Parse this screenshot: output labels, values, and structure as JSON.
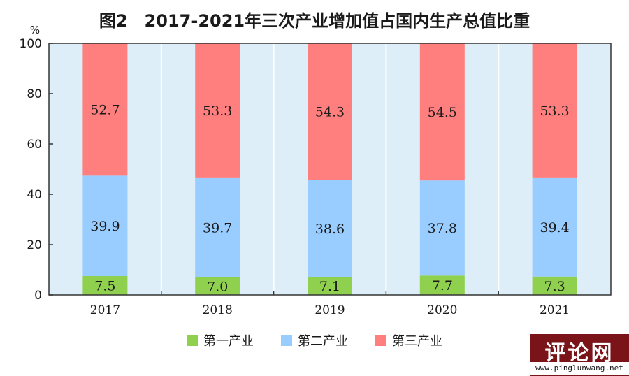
{
  "chart_data": {
    "type": "bar",
    "stacked": true,
    "title": "图2　2017-2021年三次产业增加值占国内生产总值比重",
    "ylabel": "%",
    "xlabel": "",
    "ylim": [
      0,
      100
    ],
    "yticks": [
      0,
      20,
      40,
      60,
      80,
      100
    ],
    "grid": true,
    "legend_position": "bottom",
    "categories": [
      "2017",
      "2018",
      "2019",
      "2020",
      "2021"
    ],
    "series": [
      {
        "name": "第一产业",
        "color": "#8fd14f",
        "values": [
          7.5,
          7.0,
          7.1,
          7.7,
          7.3
        ]
      },
      {
        "name": "第二产业",
        "color": "#99ccff",
        "values": [
          39.9,
          39.7,
          38.6,
          37.8,
          39.4
        ]
      },
      {
        "name": "第三产业",
        "color": "#ff7f7f",
        "values": [
          52.7,
          53.3,
          54.3,
          54.5,
          53.3
        ]
      }
    ],
    "value_labels": [
      [
        "7.5",
        "7.0",
        "7.1",
        "7.7",
        "7.3"
      ],
      [
        "39.9",
        "39.7",
        "38.6",
        "37.8",
        "39.4"
      ],
      [
        "52.7",
        "53.3",
        "54.3",
        "54.5",
        "53.3"
      ]
    ],
    "plot_background": "#ddeef8"
  },
  "watermark": {
    "logo_text": "评论网",
    "url_text": "www.pinglunwang.net"
  }
}
